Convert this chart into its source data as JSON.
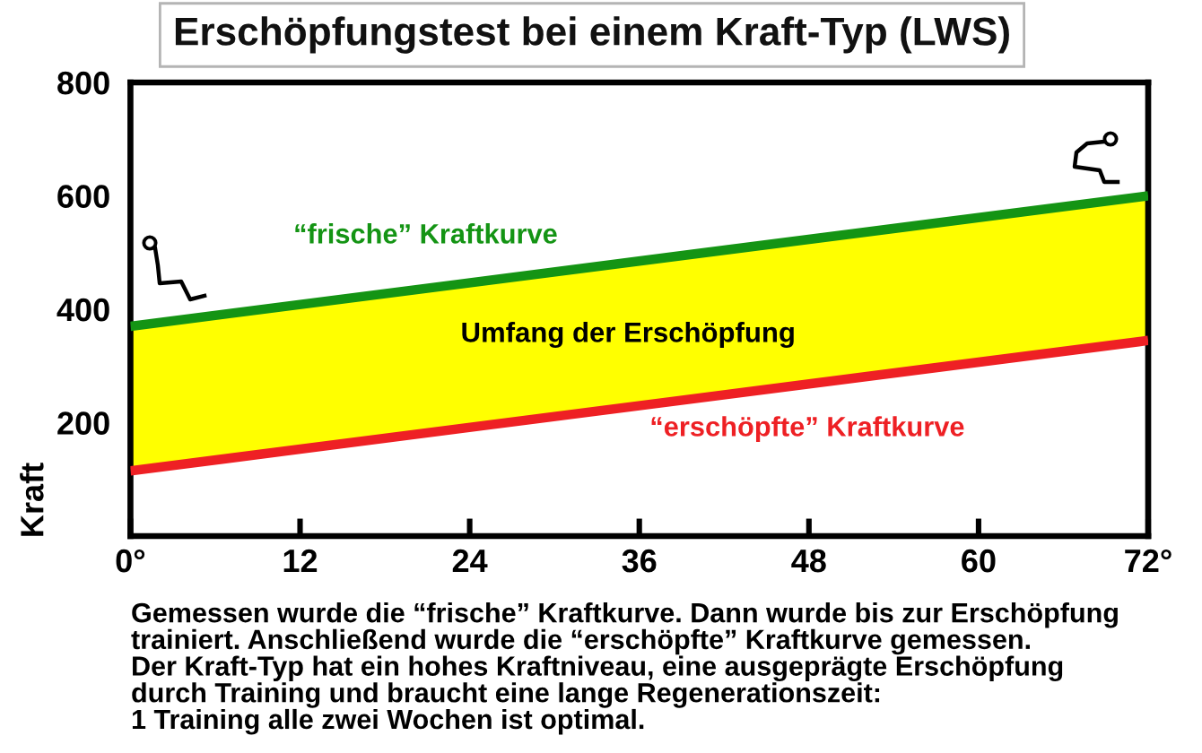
{
  "chart_data": {
    "type": "line",
    "title": "Erschöpfungstest bei einem Kraft-Typ (LWS)",
    "ylabel": "Kraft",
    "x": [
      0,
      72
    ],
    "series": [
      {
        "name": "“frische” Kraftkurve",
        "color": "#149414",
        "values": [
          370,
          600
        ]
      },
      {
        "name": "“erschöpfte” Kraftkurve",
        "color": "#ee2024",
        "values": [
          115,
          345
        ]
      },
      {
        "color": "#ffff00",
        "values": [
          null,
          null
        ],
        "lower": [
          115,
          345
        ],
        "upper": [
          370,
          600
        ]
      }
    ],
    "xlim": [
      0,
      72
    ],
    "xticks": [
      {
        "value": 0,
        "label": "0°"
      },
      12,
      24,
      36,
      48,
      60,
      {
        "value": 72,
        "label": "72°"
      }
    ],
    "ylim": [
      0,
      800
    ],
    "yticks": [
      200,
      400,
      600,
      800
    ],
    "grid": false,
    "legend": false,
    "annotations": [
      "Umfang der Erschöpfung",
      "Gemessen wurde die “frische” Kraftkurve. Dann wurde bis zur Erschöpfung\ntrainiert. Anschließend wurde die “erschöpfte” Kraftkurve gemessen.\nDer Kraft-Typ hat ein hohes Kraftniveau, eine ausgeprägte Erschöpfung\ndurch Training und braucht eine lange Regenerationszeit:\n1 Training alle zwei Wochen ist optimal."
    ]
  }
}
